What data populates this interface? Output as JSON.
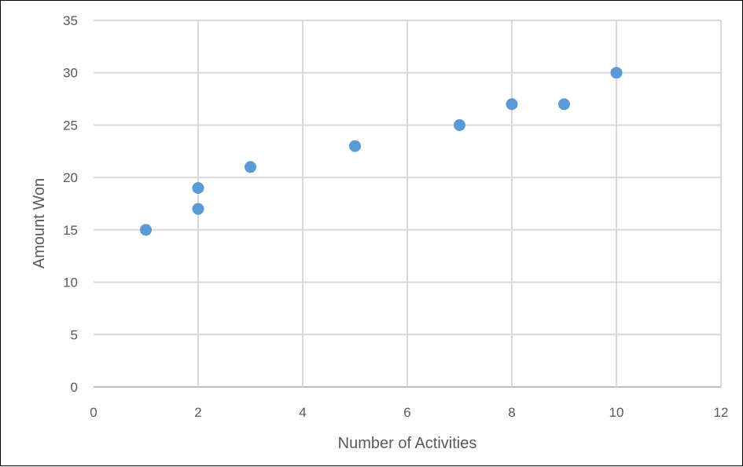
{
  "chart_data": {
    "type": "scatter",
    "title": "",
    "xlabel": "Number of Activities",
    "ylabel": "Amount Won",
    "xlim": [
      0,
      12
    ],
    "ylim": [
      0,
      35
    ],
    "x_ticks": [
      "0",
      "2",
      "4",
      "6",
      "8",
      "10",
      "12"
    ],
    "y_ticks": [
      "0",
      "5",
      "10",
      "15",
      "20",
      "25",
      "30",
      "35"
    ],
    "grid": true,
    "legend": "none",
    "series": [
      {
        "points": [
          {
            "x": 1,
            "y": 15
          },
          {
            "x": 2,
            "y": 17
          },
          {
            "x": 2,
            "y": 19
          },
          {
            "x": 3,
            "y": 21
          },
          {
            "x": 5,
            "y": 23
          },
          {
            "x": 7,
            "y": 25
          },
          {
            "x": 8,
            "y": 27
          },
          {
            "x": 9,
            "y": 27
          },
          {
            "x": 10,
            "y": 30
          }
        ]
      }
    ],
    "colors": {
      "marker": "#5b9bd5",
      "grid": "#d9d9d9",
      "text": "#595959"
    }
  }
}
